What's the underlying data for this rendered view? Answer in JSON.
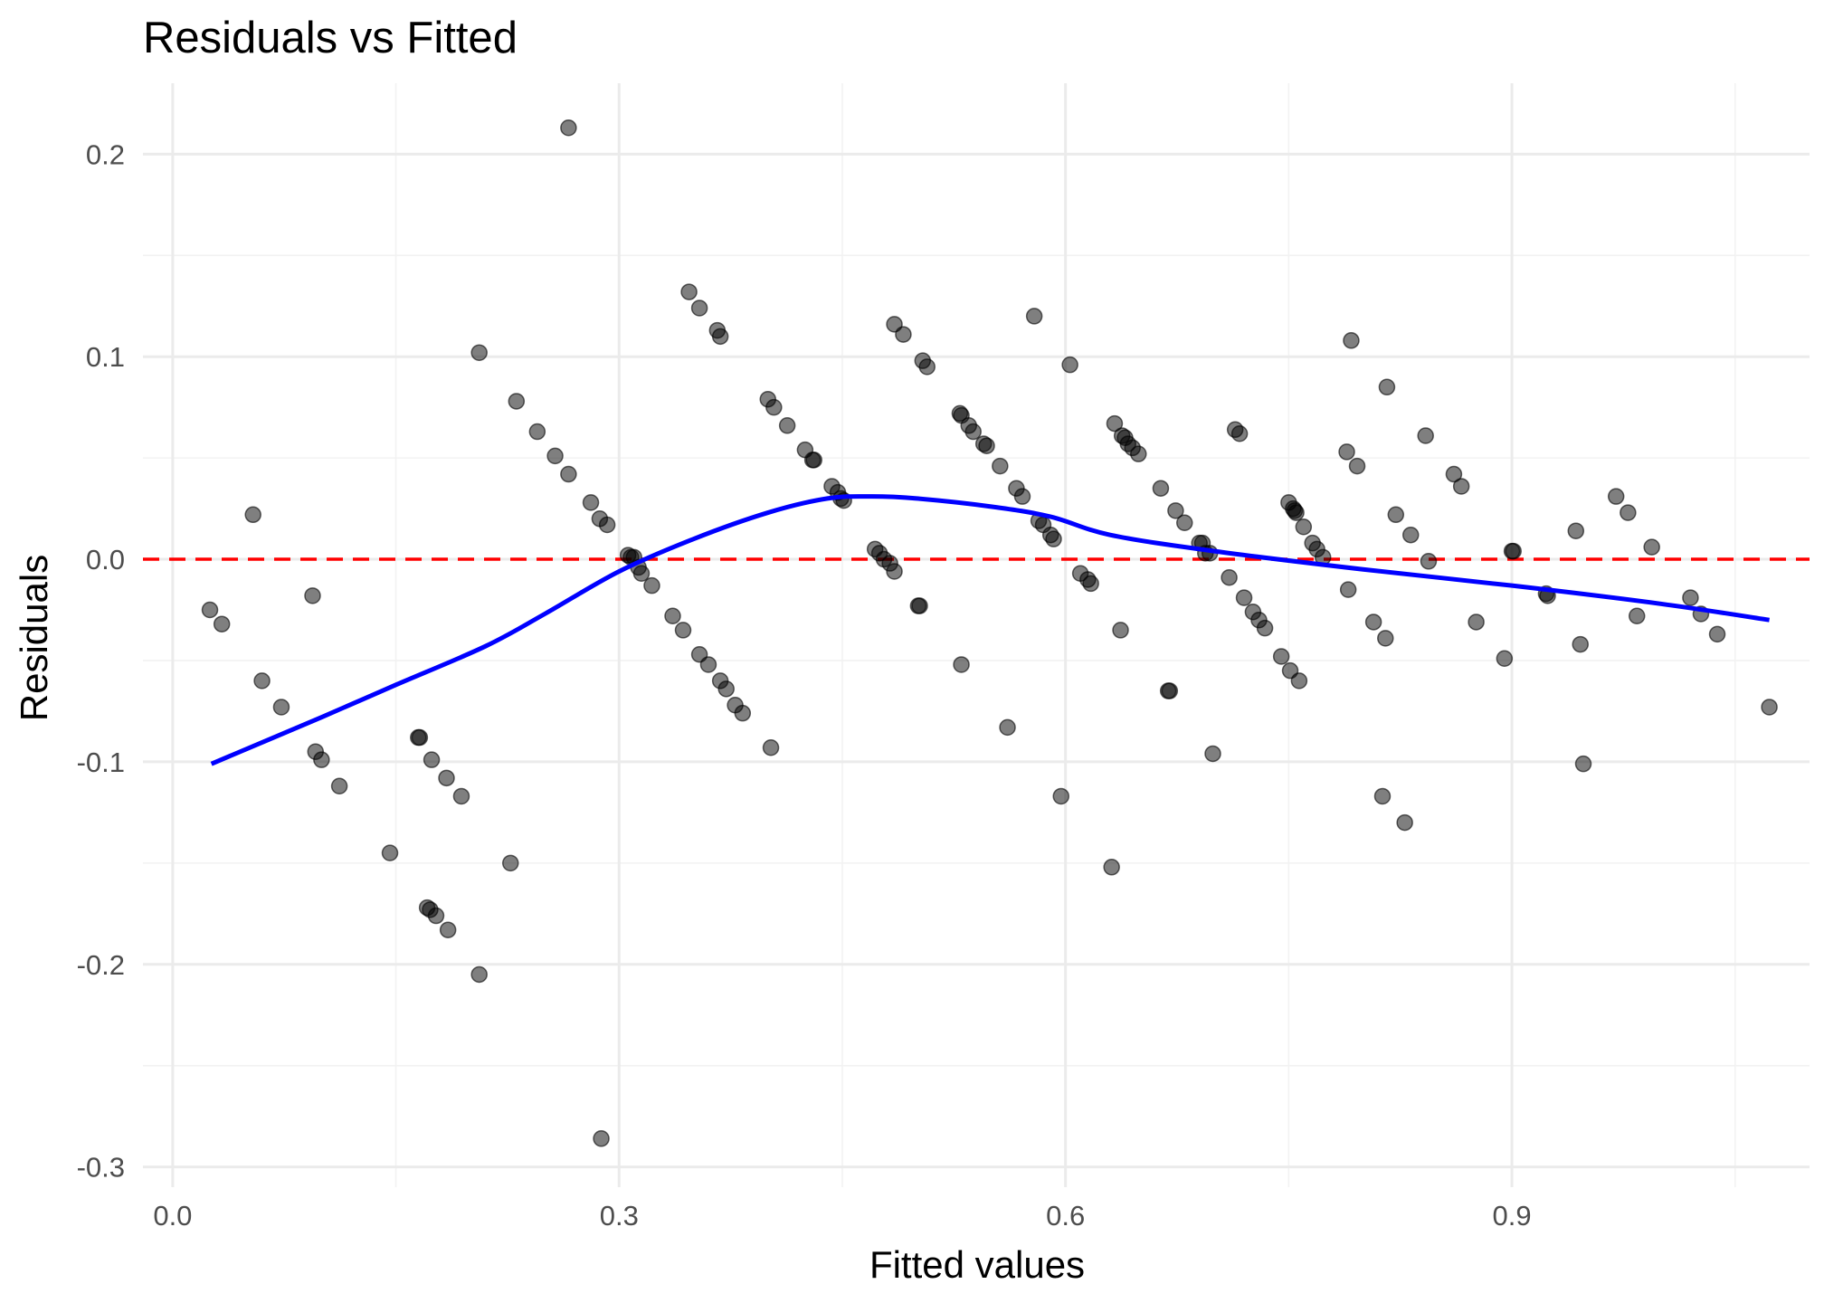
{
  "chart_data": {
    "type": "scatter",
    "title": "Residuals vs Fitted",
    "xlabel": "Fitted values",
    "ylabel": "Residuals",
    "xlim": [
      -0.02,
      1.1
    ],
    "ylim": [
      -0.31,
      0.235
    ],
    "x_ticks": [
      0.0,
      0.3,
      0.6,
      0.9
    ],
    "x_tick_labels": [
      "0.0",
      "0.3",
      "0.6",
      "0.9"
    ],
    "y_ticks": [
      0.2,
      0.1,
      0.0,
      -0.1,
      -0.2,
      -0.3
    ],
    "y_tick_labels": [
      "0.2",
      "0.1",
      "0.0",
      "-0.1",
      "-0.2",
      "-0.3"
    ],
    "grid": true,
    "colors": {
      "points": "#000000",
      "smooth": "#0000ff",
      "reference": "#ff0000"
    },
    "reference_line": {
      "y": 0,
      "style": "dashed",
      "color": "#ff0000"
    },
    "points": [
      [
        0.025,
        -0.025
      ],
      [
        0.033,
        -0.032
      ],
      [
        0.054,
        0.022
      ],
      [
        0.06,
        -0.06
      ],
      [
        0.073,
        -0.073
      ],
      [
        0.094,
        -0.018
      ],
      [
        0.096,
        -0.095
      ],
      [
        0.1,
        -0.099
      ],
      [
        0.112,
        -0.112
      ],
      [
        0.146,
        -0.145
      ],
      [
        0.165,
        -0.088
      ],
      [
        0.166,
        -0.088
      ],
      [
        0.171,
        -0.172
      ],
      [
        0.173,
        -0.173
      ],
      [
        0.174,
        -0.099
      ],
      [
        0.177,
        -0.176
      ],
      [
        0.184,
        -0.108
      ],
      [
        0.185,
        -0.183
      ],
      [
        0.194,
        -0.117
      ],
      [
        0.206,
        0.102
      ],
      [
        0.206,
        -0.205
      ],
      [
        0.227,
        -0.15
      ],
      [
        0.231,
        0.078
      ],
      [
        0.245,
        0.063
      ],
      [
        0.257,
        0.051
      ],
      [
        0.266,
        0.042
      ],
      [
        0.266,
        0.213
      ],
      [
        0.281,
        0.028
      ],
      [
        0.287,
        0.02
      ],
      [
        0.288,
        -0.286
      ],
      [
        0.292,
        0.017
      ],
      [
        0.306,
        0.002
      ],
      [
        0.308,
        0.001
      ],
      [
        0.31,
        0.001
      ],
      [
        0.313,
        -0.004
      ],
      [
        0.315,
        -0.007
      ],
      [
        0.322,
        -0.013
      ],
      [
        0.336,
        -0.028
      ],
      [
        0.343,
        -0.035
      ],
      [
        0.347,
        0.132
      ],
      [
        0.354,
        0.124
      ],
      [
        0.354,
        -0.047
      ],
      [
        0.36,
        -0.052
      ],
      [
        0.366,
        0.113
      ],
      [
        0.368,
        0.11
      ],
      [
        0.368,
        -0.06
      ],
      [
        0.372,
        -0.064
      ],
      [
        0.378,
        -0.072
      ],
      [
        0.383,
        -0.076
      ],
      [
        0.4,
        0.079
      ],
      [
        0.402,
        -0.093
      ],
      [
        0.404,
        0.075
      ],
      [
        0.413,
        0.066
      ],
      [
        0.425,
        0.054
      ],
      [
        0.43,
        0.049
      ],
      [
        0.431,
        0.049
      ],
      [
        0.443,
        0.036
      ],
      [
        0.447,
        0.033
      ],
      [
        0.449,
        0.03
      ],
      [
        0.451,
        0.029
      ],
      [
        0.472,
        0.005
      ],
      [
        0.475,
        0.003
      ],
      [
        0.478,
        0.0
      ],
      [
        0.482,
        -0.002
      ],
      [
        0.485,
        -0.006
      ],
      [
        0.485,
        0.116
      ],
      [
        0.491,
        0.111
      ],
      [
        0.501,
        -0.023
      ],
      [
        0.502,
        -0.023
      ],
      [
        0.504,
        0.098
      ],
      [
        0.507,
        0.095
      ],
      [
        0.529,
        0.072
      ],
      [
        0.53,
        0.071
      ],
      [
        0.53,
        -0.052
      ],
      [
        0.535,
        0.066
      ],
      [
        0.538,
        0.063
      ],
      [
        0.545,
        0.057
      ],
      [
        0.547,
        0.056
      ],
      [
        0.556,
        0.046
      ],
      [
        0.561,
        -0.083
      ],
      [
        0.567,
        0.035
      ],
      [
        0.571,
        0.031
      ],
      [
        0.579,
        0.12
      ],
      [
        0.582,
        0.019
      ],
      [
        0.585,
        0.017
      ],
      [
        0.59,
        0.012
      ],
      [
        0.592,
        0.01
      ],
      [
        0.597,
        -0.117
      ],
      [
        0.603,
        0.096
      ],
      [
        0.61,
        -0.007
      ],
      [
        0.615,
        -0.01
      ],
      [
        0.617,
        -0.012
      ],
      [
        0.631,
        -0.152
      ],
      [
        0.633,
        0.067
      ],
      [
        0.637,
        -0.035
      ],
      [
        0.638,
        0.061
      ],
      [
        0.64,
        0.06
      ],
      [
        0.642,
        0.057
      ],
      [
        0.645,
        0.055
      ],
      [
        0.649,
        0.052
      ],
      [
        0.664,
        0.035
      ],
      [
        0.669,
        -0.065
      ],
      [
        0.67,
        -0.065
      ],
      [
        0.674,
        0.024
      ],
      [
        0.68,
        0.018
      ],
      [
        0.69,
        0.008
      ],
      [
        0.692,
        0.008
      ],
      [
        0.694,
        0.003
      ],
      [
        0.697,
        0.003
      ],
      [
        0.699,
        -0.096
      ],
      [
        0.71,
        -0.009
      ],
      [
        0.714,
        0.064
      ],
      [
        0.717,
        0.062
      ],
      [
        0.72,
        -0.019
      ],
      [
        0.726,
        -0.026
      ],
      [
        0.73,
        -0.03
      ],
      [
        0.734,
        -0.034
      ],
      [
        0.745,
        -0.048
      ],
      [
        0.75,
        0.028
      ],
      [
        0.751,
        -0.055
      ],
      [
        0.753,
        0.025
      ],
      [
        0.754,
        0.024
      ],
      [
        0.755,
        0.023
      ],
      [
        0.757,
        -0.06
      ],
      [
        0.76,
        0.016
      ],
      [
        0.766,
        0.008
      ],
      [
        0.769,
        0.005
      ],
      [
        0.773,
        0.001
      ],
      [
        0.789,
        0.053
      ],
      [
        0.79,
        -0.015
      ],
      [
        0.792,
        0.108
      ],
      [
        0.796,
        0.046
      ],
      [
        0.807,
        -0.031
      ],
      [
        0.813,
        -0.117
      ],
      [
        0.815,
        -0.039
      ],
      [
        0.816,
        0.085
      ],
      [
        0.822,
        0.022
      ],
      [
        0.828,
        -0.13
      ],
      [
        0.832,
        0.012
      ],
      [
        0.842,
        0.061
      ],
      [
        0.844,
        -0.001
      ],
      [
        0.861,
        0.042
      ],
      [
        0.866,
        0.036
      ],
      [
        0.876,
        -0.031
      ],
      [
        0.895,
        -0.049
      ],
      [
        0.9,
        0.004
      ],
      [
        0.901,
        0.004
      ],
      [
        0.923,
        -0.017
      ],
      [
        0.924,
        -0.018
      ],
      [
        0.943,
        0.014
      ],
      [
        0.946,
        -0.042
      ],
      [
        0.948,
        -0.101
      ],
      [
        0.97,
        0.031
      ],
      [
        0.978,
        0.023
      ],
      [
        0.984,
        -0.028
      ],
      [
        0.994,
        0.006
      ],
      [
        1.02,
        -0.019
      ],
      [
        1.027,
        -0.027
      ],
      [
        1.038,
        -0.037
      ],
      [
        1.073,
        -0.073
      ]
    ],
    "smooth_line": {
      "x": [
        0.026,
        0.1,
        0.15,
        0.21,
        0.25,
        0.3,
        0.35,
        0.4,
        0.44,
        0.47,
        0.5,
        0.55,
        0.59,
        0.63,
        0.7,
        0.8,
        0.9,
        1.0,
        1.073
      ],
      "y": [
        -0.101,
        -0.078,
        -0.062,
        -0.043,
        -0.027,
        -0.006,
        0.01,
        0.023,
        0.03,
        0.031,
        0.03,
        0.026,
        0.021,
        0.012,
        0.004,
        -0.005,
        -0.013,
        -0.022,
        -0.03
      ]
    }
  }
}
